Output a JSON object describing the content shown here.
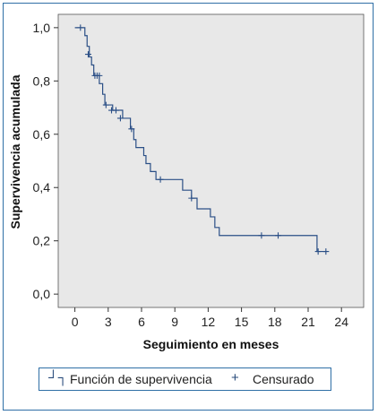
{
  "chart_data": {
    "type": "line",
    "subtype": "kaplan-meier step",
    "title": "",
    "xlabel": "Seguimiento en meses",
    "ylabel": "Supervivencia acumulada",
    "xlim": [
      -1.5,
      26
    ],
    "ylim": [
      -0.05,
      1.05
    ],
    "x_ticks": [
      0,
      3,
      6,
      9,
      12,
      15,
      18,
      21,
      24
    ],
    "x_tick_labels": [
      "0",
      "3",
      "6",
      "9",
      "12",
      "15",
      "18",
      "21",
      "24"
    ],
    "y_ticks": [
      0.0,
      0.2,
      0.4,
      0.6,
      0.8,
      1.0
    ],
    "y_tick_labels": [
      "0,0",
      "0,2",
      "0,4",
      "0,6",
      "0,8",
      "1,0"
    ],
    "grid": false,
    "plot_background": "#e8e8e8",
    "line_color": "#2b4f86",
    "series": [
      {
        "name": "Función de supervivencia",
        "steps": [
          [
            0.0,
            1.0
          ],
          [
            0.9,
            0.97
          ],
          [
            1.1,
            0.93
          ],
          [
            1.3,
            0.89
          ],
          [
            1.5,
            0.86
          ],
          [
            1.7,
            0.82
          ],
          [
            2.2,
            0.79
          ],
          [
            2.5,
            0.75
          ],
          [
            2.7,
            0.71
          ],
          [
            3.4,
            0.69
          ],
          [
            4.3,
            0.66
          ],
          [
            5.0,
            0.62
          ],
          [
            5.3,
            0.58
          ],
          [
            5.5,
            0.55
          ],
          [
            6.2,
            0.52
          ],
          [
            6.4,
            0.49
          ],
          [
            6.8,
            0.46
          ],
          [
            7.3,
            0.43
          ],
          [
            9.7,
            0.39
          ],
          [
            10.5,
            0.36
          ],
          [
            11.0,
            0.32
          ],
          [
            12.2,
            0.29
          ],
          [
            12.6,
            0.25
          ],
          [
            13.0,
            0.22
          ],
          [
            21.8,
            0.16
          ],
          [
            22.7,
            0.16
          ]
        ]
      }
    ],
    "censored": [
      {
        "x": 0.5,
        "y": 1.0
      },
      {
        "x": 1.2,
        "y": 0.9
      },
      {
        "x": 1.8,
        "y": 0.82
      },
      {
        "x": 2.0,
        "y": 0.82
      },
      {
        "x": 2.2,
        "y": 0.82
      },
      {
        "x": 2.8,
        "y": 0.71
      },
      {
        "x": 3.3,
        "y": 0.69
      },
      {
        "x": 3.7,
        "y": 0.69
      },
      {
        "x": 4.1,
        "y": 0.66
      },
      {
        "x": 5.1,
        "y": 0.62
      },
      {
        "x": 7.7,
        "y": 0.43
      },
      {
        "x": 10.5,
        "y": 0.36
      },
      {
        "x": 16.8,
        "y": 0.22
      },
      {
        "x": 18.3,
        "y": 0.22
      },
      {
        "x": 21.9,
        "y": 0.16
      },
      {
        "x": 22.6,
        "y": 0.16
      }
    ],
    "legend": {
      "position": "bottom",
      "items": [
        {
          "symbol": "┘┐",
          "label": "Función de supervivencia"
        },
        {
          "symbol": "+",
          "label": "Censurado"
        }
      ]
    }
  }
}
